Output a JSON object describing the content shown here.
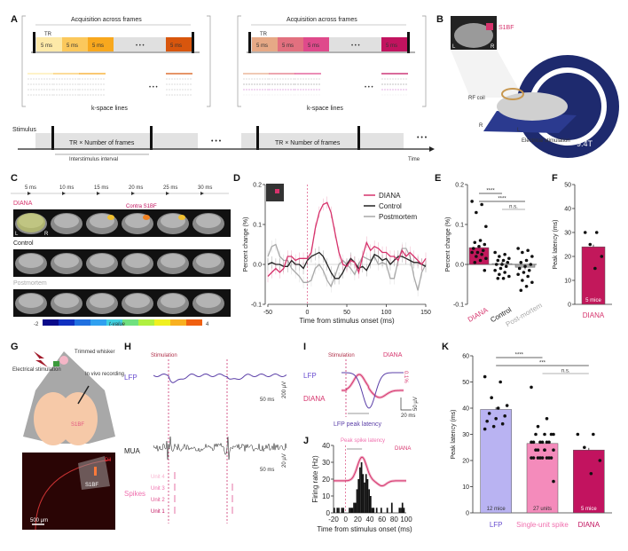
{
  "panels": {
    "A": {
      "label": "A",
      "acq_title": "Acquisition across frames",
      "tr": "TR",
      "frame": "5 ms",
      "dots": "• • •",
      "kspace": "k-space lines",
      "stimulus": "Stimulus",
      "tr_frames": "TR × Number of frames",
      "isi": "Interstimulus interval",
      "time": "Time",
      "left_colors": [
        "#fde9a8",
        "#fbc85c",
        "#f8a81e",
        "#d8560d"
      ],
      "right_colors": [
        "#e6a986",
        "#e2707f",
        "#df4a8b",
        "#c2135f"
      ]
    },
    "B": {
      "label": "B",
      "region": "S1BF",
      "l": "L",
      "r": "R",
      "coil": "RF coil",
      "field": "9.4T",
      "stim": "Electrical stimulation"
    },
    "C": {
      "label": "C",
      "times": [
        "5 ms",
        "10 ms",
        "15 ms",
        "20 ms",
        "25 ms",
        "30 ms"
      ],
      "rows": [
        "DIANA",
        "Control",
        "Postmortem"
      ],
      "contra": "Contra S1BF",
      "l": "L",
      "r": "R",
      "cbar_min": "-2",
      "cbar_max": "4",
      "cbar_label": "t-value"
    },
    "G": {
      "label": "G",
      "elec": "Electrical stimulation",
      "whisker": "Trimmed whisker",
      "rec": "In vivo recording",
      "region": "S1BF",
      "dye": "DiI",
      "scale": "500 µm"
    },
    "H": {
      "label": "H",
      "stim": "Stimulation",
      "lfp": "LFP",
      "mua": "MUA",
      "spikes": "Spikes",
      "units": [
        "Unit 4",
        "Unit 3",
        "Unit 2",
        "Unit 1"
      ],
      "lfp_scale_t": "50 ms",
      "lfp_scale_v": "200 µV",
      "mua_scale_t": "50 ms",
      "mua_scale_v": "20 µV"
    },
    "I": {
      "label": "I",
      "stim": "Stimulation",
      "diana": "DIANA",
      "lfp": "LFP",
      "pct": "0.1%",
      "scale_t": "20 ms",
      "scale_v": "50 µV",
      "latency": "LFP peak latency"
    },
    "J": {
      "label": "J",
      "latency": "Peak spike latency",
      "diana": "DIANA",
      "pct": "0.1%"
    }
  },
  "chart_data": [
    {
      "id": "D",
      "type": "line",
      "title": "",
      "xlabel": "Time from stimulus onset (ms)",
      "ylabel": "Percent change (%)",
      "xlim": [
        -50,
        150
      ],
      "ylim": [
        -0.1,
        0.2
      ],
      "xticks": [
        -50,
        0,
        50,
        100,
        150
      ],
      "yticks": [
        -0.1,
        0.0,
        0.1,
        0.2
      ],
      "legend": "top-right",
      "x": [
        -50,
        -45,
        -40,
        -35,
        -30,
        -25,
        -20,
        -15,
        -10,
        -5,
        0,
        5,
        10,
        15,
        20,
        25,
        30,
        35,
        40,
        45,
        50,
        55,
        60,
        65,
        70,
        75,
        80,
        85,
        90,
        95,
        100,
        105,
        110,
        115,
        120,
        125,
        130,
        135,
        140,
        145,
        150
      ],
      "series": [
        {
          "name": "DIANA",
          "color": "#d6336c",
          "values": [
            -0.03,
            -0.02,
            -0.01,
            -0.02,
            -0.01,
            0.02,
            0.02,
            0.01,
            0.015,
            0.015,
            0.015,
            0.03,
            0.09,
            0.13,
            0.15,
            0.155,
            0.13,
            0.08,
            0.03,
            0.0,
            -0.005,
            0.01,
            0.005,
            -0.02,
            0.02,
            0.055,
            0.035,
            0.045,
            0.04,
            0.03,
            0.03,
            0.02,
            0.02,
            0.01,
            0.035,
            0.02,
            0.03,
            0.02,
            0.01,
            0.0,
            0.015
          ]
        },
        {
          "name": "Control",
          "color": "#222222",
          "values": [
            0,
            0.005,
            0,
            0,
            -0.005,
            -0.005,
            0.01,
            0,
            0,
            -0.01,
            0.01,
            0.02,
            0.025,
            0.03,
            0.02,
            0,
            -0.02,
            -0.035,
            -0.035,
            -0.02,
            0,
            0.015,
            0.005,
            -0.01,
            -0.005,
            -0.015,
            0.005,
            0.025,
            0.02,
            0.01,
            0.015,
            0,
            0.01,
            0.02,
            0.02,
            0.015,
            0.01,
            0.005,
            0.005,
            0,
            -0.005
          ]
        },
        {
          "name": "Postmortem",
          "color": "#a8a8a8",
          "values": [
            0.02,
            0.045,
            0.05,
            0.02,
            0.01,
            0.01,
            -0.01,
            -0.02,
            -0.03,
            -0.045,
            -0.045,
            -0.04,
            -0.01,
            0,
            -0.015,
            -0.04,
            -0.055,
            -0.03,
            0,
            0.01,
            0,
            -0.01,
            -0.025,
            0,
            0.02,
            0.015,
            0.01,
            0.02,
            0,
            0.005,
            0,
            -0.035,
            -0.035,
            0.01,
            0.04,
            0.04,
            0.02,
            -0.03,
            -0.065,
            -0.02,
            0
          ]
        }
      ]
    },
    {
      "id": "E",
      "type": "bar",
      "ylabel": "Percent change (%)",
      "ylim": [
        -0.1,
        0.2
      ],
      "yticks": [
        -0.1,
        0.0,
        0.1,
        0.2
      ],
      "categories": [
        "DIANA",
        "Control",
        "Post-mortem"
      ],
      "values": [
        0.042,
        0.002,
        -0.007
      ],
      "colors": [
        "#c2185b",
        "#cccccc",
        "#aaaaaa"
      ],
      "label_colors": [
        "#d6336c",
        "#222222",
        "#aaaaaa"
      ],
      "points": [
        [
          0.158,
          0.15,
          0.13,
          0.095,
          0.06,
          0.055,
          0.05,
          0.045,
          0.04,
          0.035,
          0.03,
          0.03,
          0.025,
          0.02,
          0.015,
          0.01,
          0.005,
          -0.015
        ],
        [
          0.03,
          0.025,
          0.02,
          0.015,
          0.01,
          0.01,
          0.005,
          0,
          0,
          -0.005,
          -0.01,
          -0.015,
          -0.02,
          -0.025,
          -0.03,
          -0.035,
          -0.035
        ],
        [
          0.04,
          0.035,
          0.03,
          0.02,
          0.01,
          0.005,
          0,
          -0.005,
          -0.01,
          -0.015,
          -0.02,
          -0.025,
          -0.03,
          -0.04,
          -0.045,
          -0.055,
          -0.065
        ]
      ],
      "significance": [
        {
          "pair": [
            0,
            1
          ],
          "text": "****"
        },
        {
          "pair": [
            0,
            2
          ],
          "text": "****"
        },
        {
          "pair": [
            1,
            2
          ],
          "text": "n.s."
        }
      ]
    },
    {
      "id": "F",
      "type": "bar",
      "ylabel": "Peak latency (ms)",
      "ylim": [
        0,
        50
      ],
      "yticks": [
        0,
        10,
        20,
        30,
        40,
        50
      ],
      "categories": [
        "DIANA"
      ],
      "values": [
        24
      ],
      "colors": [
        "#c2185b"
      ],
      "label_colors": [
        "#d6336c"
      ],
      "n_labels": [
        "5 mice"
      ],
      "points": [
        [
          30,
          30,
          25,
          20,
          15
        ]
      ]
    },
    {
      "id": "J",
      "type": "bar",
      "xlabel": "Time from stimulus onset (ms)",
      "ylabel": "Firing rate (Hz)",
      "xlim": [
        -20,
        100
      ],
      "ylim": [
        0,
        40
      ],
      "xticks": [
        -20,
        0,
        20,
        40,
        60,
        80,
        100
      ],
      "yticks": [
        0,
        10,
        20,
        30,
        40
      ],
      "bin_starts": [
        -20,
        -17.5,
        -15,
        -12.5,
        -10,
        -7.5,
        -5,
        -2.5,
        0,
        2.5,
        5,
        7.5,
        10,
        12.5,
        15,
        17.5,
        20,
        22.5,
        25,
        27.5,
        30,
        32.5,
        35,
        37.5,
        40,
        42.5,
        45,
        47.5,
        50,
        52.5,
        55,
        57.5,
        60,
        62.5,
        65,
        67.5,
        70,
        72.5,
        75,
        77.5,
        80,
        82.5,
        85,
        87.5,
        90,
        92.5,
        95,
        97.5
      ],
      "values": [
        3,
        0,
        3,
        3,
        0,
        3,
        3,
        0,
        0,
        0,
        3,
        3,
        3,
        6,
        6,
        14,
        20,
        27,
        30,
        23,
        18,
        23,
        20,
        14,
        10,
        3,
        3,
        0,
        3,
        0,
        0,
        3,
        0,
        0,
        0,
        3,
        0,
        0,
        6,
        0,
        0,
        0,
        0,
        3,
        3,
        6,
        3,
        0
      ]
    },
    {
      "id": "K",
      "type": "bar",
      "ylabel": "Peak latency (ms)",
      "ylim": [
        0,
        60
      ],
      "yticks": [
        0,
        10,
        20,
        30,
        40,
        50,
        60
      ],
      "categories": [
        "LFP",
        "Single-unit spike",
        "DIANA"
      ],
      "values": [
        39.5,
        26.5,
        24
      ],
      "colors": [
        "#b9b3f2",
        "#f48bbb",
        "#c2135f"
      ],
      "label_colors": [
        "#6a4fd0",
        "#f06fae",
        "#c2135f"
      ],
      "n_labels": [
        "12 mice",
        "27 units",
        "5 mice"
      ],
      "points": [
        [
          52,
          50,
          44,
          41,
          40,
          38,
          37,
          36,
          35,
          34,
          33,
          32
        ],
        [
          48,
          36,
          33,
          30,
          30,
          30,
          30,
          27,
          27,
          27,
          27,
          27,
          27,
          24,
          24,
          24,
          24,
          21,
          21,
          21,
          21,
          21,
          21,
          21,
          21,
          12,
          24
        ],
        [
          30,
          30,
          25,
          20,
          15
        ]
      ],
      "significance": [
        {
          "pair": [
            0,
            1
          ],
          "text": "****"
        },
        {
          "pair": [
            0,
            2
          ],
          "text": "***"
        },
        {
          "pair": [
            1,
            2
          ],
          "text": "n.s."
        }
      ]
    }
  ]
}
